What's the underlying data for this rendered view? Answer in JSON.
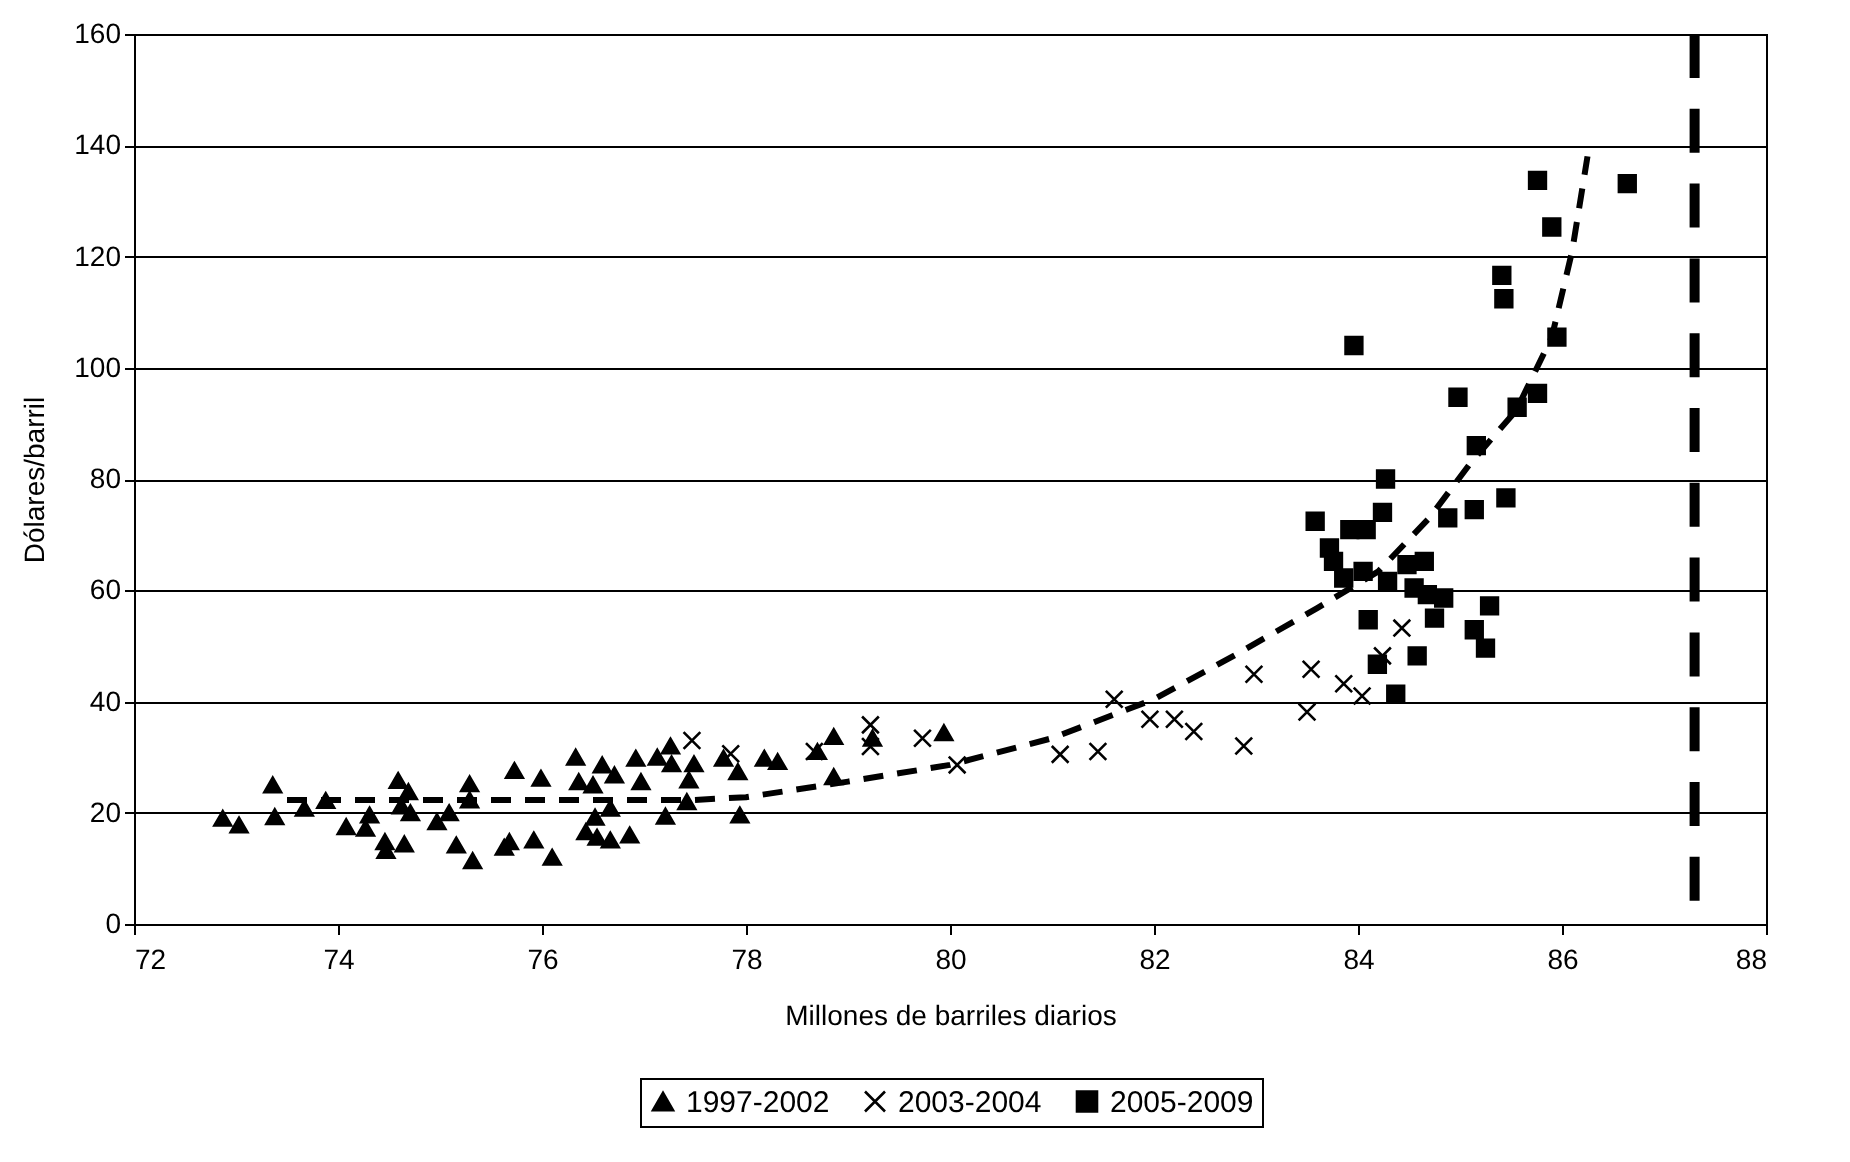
{
  "chart_data": {
    "type": "scatter",
    "xlabel": "Millones de barriles diarios",
    "ylabel": "Dólares/barril",
    "xlim": [
      72,
      88
    ],
    "xticks": [
      72,
      74,
      76,
      78,
      80,
      82,
      84,
      86,
      88
    ],
    "ylim": [
      0,
      160
    ],
    "yticks": [
      0,
      20,
      40,
      60,
      80,
      100,
      120,
      140,
      160
    ],
    "grid": "y",
    "legend": "bottom",
    "series": [
      {
        "name": "1997-2002",
        "color": "#000000",
        "marker": "triangle",
        "x": [
          72.87,
          73.03,
          73.36,
          73.38,
          73.67,
          73.88,
          74.08,
          74.27,
          74.31,
          74.46,
          74.47,
          74.65,
          74.59,
          74.69,
          74.62,
          74.71,
          74.97,
          75.09,
          75.16,
          75.29,
          75.29,
          75.32,
          75.63,
          75.68,
          75.73,
          75.99,
          75.92,
          76.1,
          76.33,
          76.36,
          76.5,
          76.43,
          76.52,
          76.59,
          76.71,
          76.54,
          76.67,
          76.86,
          76.67,
          76.92,
          76.97,
          77.13,
          77.21,
          77.26,
          77.27,
          77.49,
          77.44,
          77.42,
          77.78,
          77.92,
          77.94,
          78.18,
          78.31,
          78.7,
          78.86,
          78.86,
          79.24,
          79.94
        ],
        "values": [
          19.0,
          17.8,
          25.0,
          19.3,
          20.8,
          22.2,
          17.5,
          17.2,
          19.6,
          14.8,
          13.2,
          14.4,
          25.8,
          23.8,
          21.2,
          20.0,
          18.4,
          20.0,
          14.2,
          25.2,
          22.3,
          11.4,
          13.8,
          14.8,
          27.6,
          26.2,
          15.1,
          12.0,
          30.0,
          25.6,
          25.0,
          16.6,
          19.2,
          28.6,
          26.8,
          15.6,
          15.1,
          16.0,
          20.8,
          29.8,
          25.6,
          30.0,
          19.4,
          32.0,
          28.8,
          28.8,
          25.9,
          22.0,
          29.8,
          27.4,
          19.6,
          29.8,
          29.2,
          31.0,
          33.7,
          26.5,
          33.4,
          34.4
        ]
      },
      {
        "name": "2003-2004",
        "color": "#000000",
        "marker": "cross",
        "x": [
          77.47,
          77.85,
          78.67,
          79.22,
          79.22,
          79.73,
          80.07,
          81.08,
          81.45,
          81.61,
          81.96,
          82.2,
          82.39,
          82.88,
          82.98,
          83.54,
          83.5,
          83.86,
          84.04,
          84.43,
          84.24
        ],
        "values": [
          33.0,
          30.6,
          31.0,
          35.8,
          31.9,
          33.4,
          28.6,
          30.5,
          31.0,
          40.4,
          36.8,
          36.8,
          34.6,
          32.0,
          44.9,
          45.8,
          38.1,
          43.2,
          41.0,
          53.2,
          48.2
        ]
      },
      {
        "name": "2005-2009",
        "color": "#000000",
        "marker": "square",
        "x": [
          85.76,
          86.64,
          85.9,
          85.41,
          85.43,
          83.96,
          85.95,
          84.98,
          85.76,
          85.56,
          85.16,
          84.27,
          85.45,
          85.14,
          84.88,
          83.58,
          84.24,
          83.92,
          84.08,
          83.72,
          83.76,
          83.86,
          84.05,
          84.29,
          84.48,
          84.65,
          84.55,
          84.68,
          84.84,
          84.75,
          85.29,
          84.1,
          85.14,
          85.25,
          84.58,
          84.19,
          84.37
        ],
        "values": [
          133.7,
          133.1,
          125.3,
          116.6,
          112.4,
          104.0,
          105.5,
          94.7,
          95.4,
          92.9,
          86.0,
          80.0,
          76.6,
          74.5,
          73.0,
          72.4,
          74.0,
          70.9,
          70.9,
          67.6,
          65.2,
          62.2,
          63.4,
          61.6,
          64.6,
          65.2,
          60.4,
          59.2,
          58.6,
          55.0,
          57.2,
          54.7,
          52.9,
          49.6,
          48.2,
          46.7,
          41.3
        ]
      },
      {
        "type": "line",
        "color": "#000000",
        "line_style": "dashed",
        "x": [
          73.5,
          76,
          77.5,
          78,
          79,
          80,
          81,
          82,
          82.8,
          83.6,
          84.2,
          84.7,
          85.1,
          85.55,
          85.9,
          86.1,
          86.25
        ],
        "values": [
          22.3,
          22.3,
          22.3,
          22.8,
          25.6,
          28.6,
          33.4,
          40.4,
          48.4,
          56.8,
          63.4,
          73,
          82.8,
          92.3,
          105.5,
          121,
          138
        ]
      }
    ],
    "ref_lines": [
      {
        "axis": "x",
        "value": 87.3,
        "color": "#000000",
        "line_style": "dashed"
      }
    ]
  }
}
